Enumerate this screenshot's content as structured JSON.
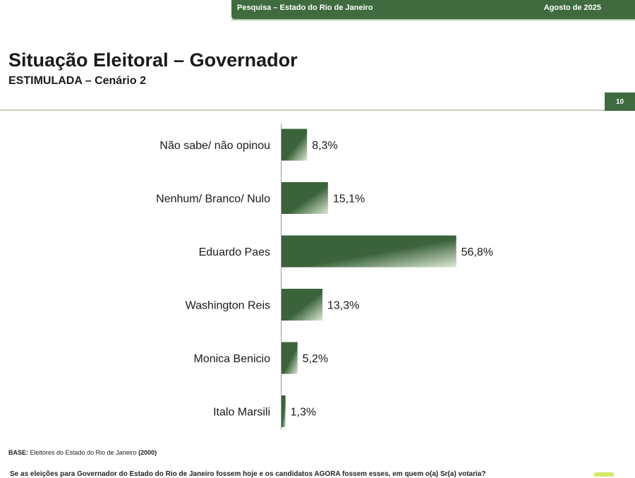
{
  "header": {
    "survey": "Pesquisa – Estado do Rio de Janeiro",
    "date": "Agosto de 2025",
    "page_number": "10"
  },
  "slide": {
    "title": "Situação Eleitoral – Governador",
    "subtitle": "ESTIMULADA – Cenário 2"
  },
  "footer": {
    "base_label": "BASE:",
    "base_text": " Eleitores do Estado do Rio de Janeiro ",
    "base_n": "(2000)",
    "question": "Se as eleições para Governador do Estado do Rio de Janeiro fossem hoje e os candidatos AGORA fossem esses, em quem o(a) Sr(a) votaria?"
  },
  "colors": {
    "bar_dark": "#3b633b",
    "bar_light": "#dde8d6",
    "accent": "#3f6b3f"
  },
  "chart_data": {
    "type": "bar",
    "orientation": "horizontal",
    "categories": [
      "Não sabe/ não opinou",
      "Nenhum/ Branco/ Nulo",
      "Eduardo Paes",
      "Washington Reis",
      "Monica Benicio",
      "Italo Marsili"
    ],
    "values": [
      8.3,
      15.1,
      56.8,
      13.3,
      5.2,
      1.3
    ],
    "value_labels": [
      "8,3%",
      "15,1%",
      "56,8%",
      "13,3%",
      "5,2%",
      "1,3%"
    ],
    "unit": "%",
    "xlim": [
      0,
      100
    ],
    "grid": false,
    "legend": "none"
  }
}
